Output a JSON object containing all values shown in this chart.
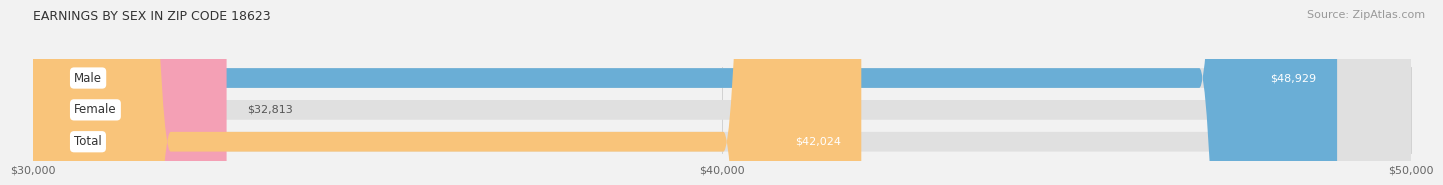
{
  "title": "EARNINGS BY SEX IN ZIP CODE 18623",
  "source": "Source: ZipAtlas.com",
  "categories": [
    "Male",
    "Female",
    "Total"
  ],
  "values": [
    48929,
    32813,
    42024
  ],
  "colors": [
    "#6aaed6",
    "#f4a0b5",
    "#f9c47a"
  ],
  "x_min": 30000,
  "x_max": 50000,
  "x_ticks": [
    30000,
    40000,
    50000
  ],
  "x_tick_labels": [
    "$30,000",
    "$40,000",
    "$50,000"
  ],
  "label_inside": [
    true,
    false,
    true
  ],
  "bar_height": 0.62,
  "bg_color": "#f2f2f2",
  "bar_bg_color": "#e0e0e0",
  "title_fontsize": 9,
  "source_fontsize": 8,
  "tick_fontsize": 8,
  "label_fontsize": 8,
  "category_fontsize": 8.5
}
